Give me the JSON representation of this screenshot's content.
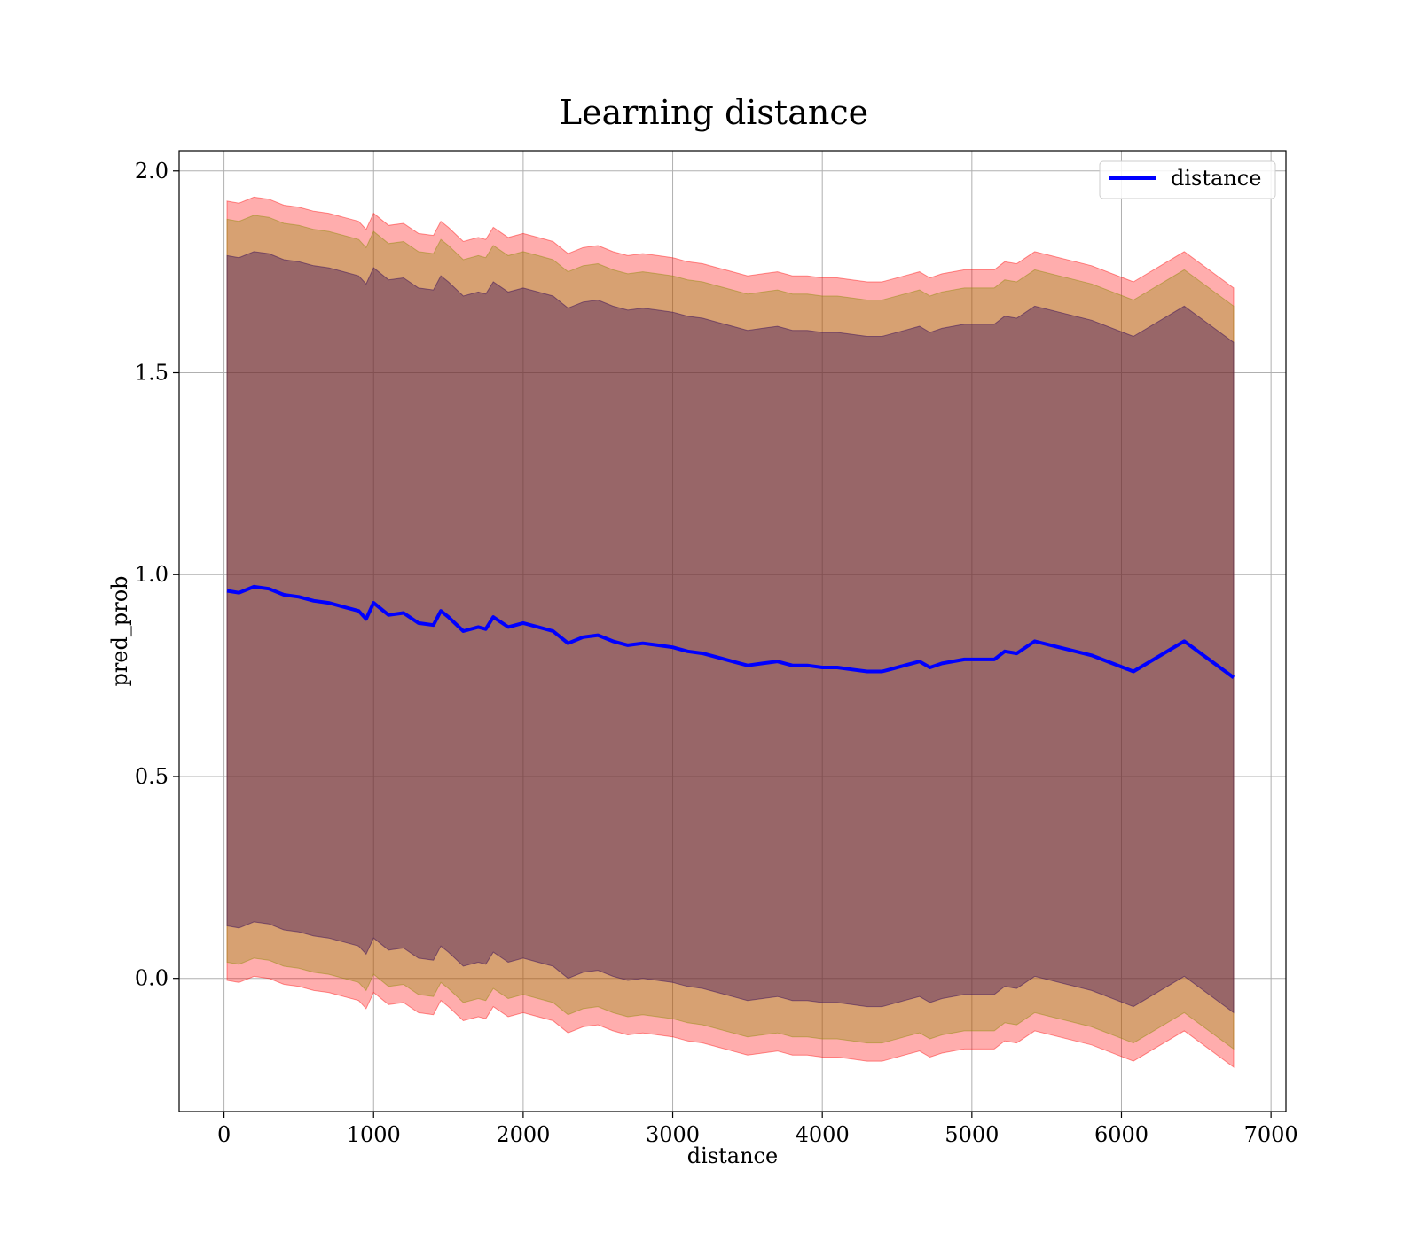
{
  "chart_data": {
    "type": "line",
    "title": "Learning distance",
    "xlabel": "distance",
    "ylabel": "pred_prob",
    "xlim": [
      -300,
      7100
    ],
    "ylim": [
      -0.33,
      2.05
    ],
    "xticks": [
      0,
      1000,
      2000,
      3000,
      4000,
      5000,
      6000,
      7000
    ],
    "yticks": [
      0.0,
      0.5,
      1.0,
      1.5,
      2.0
    ],
    "xtick_labels": [
      "0",
      "1000",
      "2000",
      "3000",
      "4000",
      "5000",
      "6000",
      "7000"
    ],
    "ytick_labels": [
      "0.0",
      "0.5",
      "1.0",
      "1.5",
      "2.0"
    ],
    "grid": true,
    "legend_position": "top-right",
    "colors": {
      "line": "#0000ff",
      "band_outer": "#ff0000",
      "band_middle": "#8b8b00",
      "band_inner": "#3a0f5a",
      "grid": "#b0b0b0"
    },
    "x": [
      20,
      100,
      200,
      300,
      400,
      500,
      600,
      700,
      800,
      900,
      950,
      1000,
      1100,
      1200,
      1300,
      1400,
      1450,
      1500,
      1600,
      1700,
      1750,
      1800,
      1900,
      2000,
      2100,
      2200,
      2300,
      2400,
      2500,
      2600,
      2700,
      2800,
      2900,
      3000,
      3100,
      3200,
      3300,
      3400,
      3500,
      3600,
      3700,
      3800,
      3900,
      4000,
      4100,
      4200,
      4300,
      4400,
      4450,
      4550,
      4650,
      4720,
      4800,
      4950,
      5150,
      5220,
      5300,
      5420,
      5800,
      6080,
      6420,
      6750
    ],
    "series": [
      {
        "name": "distance",
        "values": [
          0.96,
          0.955,
          0.97,
          0.965,
          0.95,
          0.945,
          0.935,
          0.93,
          0.92,
          0.91,
          0.89,
          0.93,
          0.9,
          0.905,
          0.88,
          0.875,
          0.91,
          0.895,
          0.86,
          0.87,
          0.865,
          0.895,
          0.87,
          0.88,
          0.87,
          0.86,
          0.83,
          0.845,
          0.85,
          0.835,
          0.825,
          0.83,
          0.825,
          0.82,
          0.81,
          0.805,
          0.795,
          0.785,
          0.775,
          0.78,
          0.785,
          0.775,
          0.775,
          0.77,
          0.77,
          0.765,
          0.76,
          0.76,
          0.765,
          0.775,
          0.785,
          0.77,
          0.78,
          0.79,
          0.79,
          0.81,
          0.805,
          0.835,
          0.8,
          0.76,
          0.835,
          0.745
        ]
      }
    ],
    "bands": [
      {
        "offset": 0.965,
        "color": "#ff0000",
        "opacity": 0.32
      },
      {
        "offset": 0.92,
        "color": "#8b8b00",
        "opacity": 0.34
      },
      {
        "offset": 0.83,
        "color": "#3a0f5a",
        "opacity": 0.4
      }
    ]
  }
}
